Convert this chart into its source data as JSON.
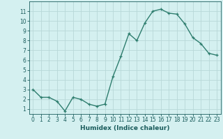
{
  "x": [
    0,
    1,
    2,
    3,
    4,
    5,
    6,
    7,
    8,
    9,
    10,
    11,
    12,
    13,
    14,
    15,
    16,
    17,
    18,
    19,
    20,
    21,
    22,
    23
  ],
  "y": [
    3.0,
    2.2,
    2.2,
    1.8,
    0.8,
    2.2,
    2.0,
    1.5,
    1.3,
    1.5,
    4.3,
    6.4,
    8.7,
    8.0,
    9.8,
    11.0,
    11.2,
    10.8,
    10.7,
    9.7,
    8.3,
    7.7,
    6.7,
    6.5
  ],
  "line_color": "#2e7d6e",
  "marker": "+",
  "marker_size": 3,
  "marker_edge_width": 0.9,
  "bg_color": "#d4f0f0",
  "grid_color": "#b8d8d8",
  "axis_label_color": "#1a5c5c",
  "tick_color": "#1a5c5c",
  "xlabel": "Humidex (Indice chaleur)",
  "xlabel_fontsize": 6.5,
  "tick_fontsize": 5.5,
  "xlim": [
    -0.5,
    23.5
  ],
  "ylim": [
    0.5,
    12
  ],
  "yticks": [
    1,
    2,
    3,
    4,
    5,
    6,
    7,
    8,
    9,
    10,
    11
  ],
  "xticks": [
    0,
    1,
    2,
    3,
    4,
    5,
    6,
    7,
    8,
    9,
    10,
    11,
    12,
    13,
    14,
    15,
    16,
    17,
    18,
    19,
    20,
    21,
    22,
    23
  ],
  "line_width": 1.0
}
